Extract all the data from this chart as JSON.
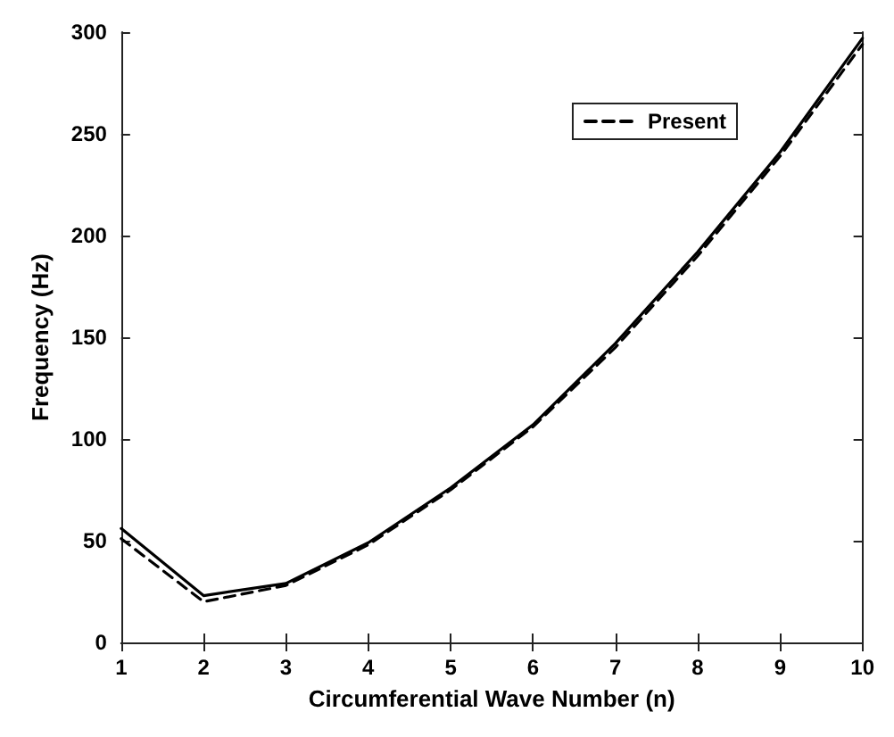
{
  "chart_data": {
    "type": "line",
    "xlabel": "Circumferential Wave Number (n)",
    "ylabel": "Frequency (Hz)",
    "x": [
      1,
      2,
      3,
      4,
      5,
      6,
      7,
      8,
      9,
      10
    ],
    "series": [
      {
        "color": "#000000",
        "line_style": "solid",
        "values": [
          56,
          23,
          29,
          49,
          76,
          107,
          147,
          192,
          241,
          297
        ]
      },
      {
        "name": "Present",
        "color": "#000000",
        "line_style": "dashed",
        "values": [
          51,
          20,
          28,
          48,
          75,
          106,
          145,
          190,
          239,
          294
        ]
      }
    ],
    "xlim": [
      1,
      10
    ],
    "xticks": [
      1,
      2,
      3,
      4,
      5,
      6,
      7,
      8,
      9,
      10
    ],
    "ylim": [
      0,
      300
    ],
    "yticks": [
      0,
      50,
      100,
      150,
      200,
      250,
      300
    ],
    "grid": false,
    "legend": "top right",
    "marker": "none"
  }
}
